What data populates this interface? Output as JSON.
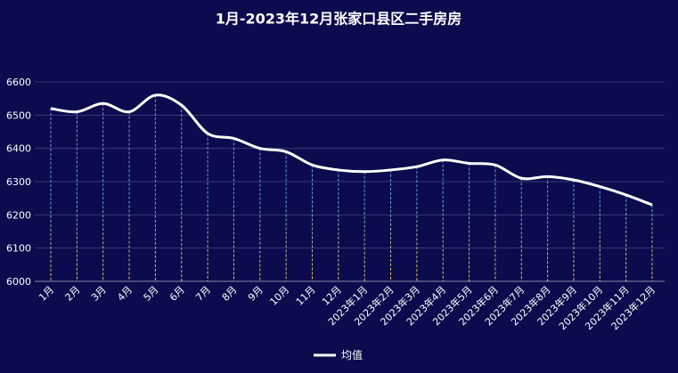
{
  "chart_data": {
    "type": "line",
    "title": "1月-2023年12月张家口县区二手房房",
    "categories": [
      "1月",
      "2月",
      "3月",
      "4月",
      "5月",
      "6月",
      "7月",
      "8月",
      "9月",
      "10月",
      "11月",
      "12月",
      "2023年1月",
      "2023年2月",
      "2023年3月",
      "2023年4月",
      "2023年5月",
      "2023年6月",
      "2023年7月",
      "2023年8月",
      "2023年9月",
      "2023年10月",
      "2023年11月",
      "2023年12月"
    ],
    "series": [
      {
        "name": "均值",
        "color": "#ffffff",
        "values": [
          6520,
          6510,
          6535,
          6510,
          6560,
          6530,
          6445,
          6430,
          6400,
          6390,
          6350,
          6335,
          6330,
          6335,
          6345,
          6365,
          6355,
          6350,
          6310,
          6315,
          6305,
          6285,
          6260,
          6230
        ]
      }
    ],
    "ylim": [
      6000,
      6600
    ],
    "yticks": [
      6000,
      6100,
      6200,
      6300,
      6400,
      6500,
      6600
    ],
    "grid": true,
    "legend": "bottom",
    "smooth": true
  }
}
